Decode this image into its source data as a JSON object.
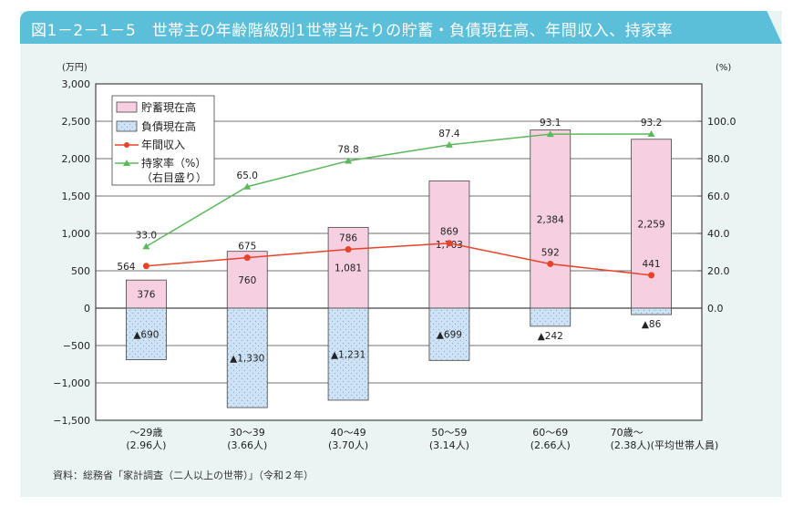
{
  "title": "図1－2－1－5　世帯主の年齢階級別1世帯当たりの貯蓄・負債現在高、年間収入、持家率",
  "source": "資料：総務省「家計調査（二人以上の世帯）」（令和２年）",
  "chart_data": {
    "type": "bar+line",
    "categories": [
      [
        "～29歳",
        "(2.96人)"
      ],
      [
        "30～39",
        "(3.66人)"
      ],
      [
        "40～49",
        "(3.70人)"
      ],
      [
        "50～59",
        "(3.14人)"
      ],
      [
        "60～69",
        "(2.66人)"
      ],
      [
        "70歳～",
        "(2.38人)(平均世帯人員)"
      ]
    ],
    "left_axis": {
      "unit": "(万円)",
      "ylim": [
        -1500,
        3000
      ],
      "ticks": [
        "3,000",
        "2,500",
        "2,000",
        "1,500",
        "1,000",
        "500",
        "0",
        "−500",
        "−1,000",
        "−1,500"
      ],
      "tick_values": [
        3000,
        2500,
        2000,
        1500,
        1000,
        500,
        0,
        -500,
        -1000,
        -1500
      ]
    },
    "right_axis": {
      "unit": "(%)",
      "ylim": [
        0,
        100
      ],
      "ticks": [
        "100.0",
        "80.0",
        "60.0",
        "40.0",
        "20.0",
        "0.0"
      ],
      "tick_values": [
        100,
        80,
        60,
        40,
        20,
        0
      ]
    },
    "grid": true,
    "legend_position": "top-left",
    "series": [
      {
        "name": "貯蓄現在高",
        "kind": "bar",
        "color": "#f6cfe0",
        "values": [
          376,
          760,
          1081,
          1703,
          2384,
          2259
        ],
        "labels": [
          "376",
          "760",
          "1,081",
          "1,703",
          "2,384",
          "2,259"
        ]
      },
      {
        "name": "負債現在高",
        "kind": "bar",
        "color": "#cfe3f5",
        "values": [
          -690,
          -1330,
          -1231,
          -699,
          -242,
          -86
        ],
        "labels": [
          "▲690",
          "▲1,330",
          "▲1,231",
          "▲699",
          "▲242",
          "▲86"
        ]
      },
      {
        "name": "年間収入",
        "kind": "line",
        "color": "#e8432a",
        "values": [
          564,
          675,
          786,
          869,
          592,
          441
        ],
        "labels": [
          "564",
          "675",
          "786",
          "869",
          "592",
          "441"
        ]
      },
      {
        "name": "持家率（%）",
        "name2": "（右目盛り）",
        "kind": "line",
        "axis": "right",
        "color": "#5cb85c",
        "values": [
          33.0,
          65.0,
          78.8,
          87.4,
          93.1,
          93.2
        ],
        "labels": [
          "33.0",
          "65.0",
          "78.8",
          "87.4",
          "93.1",
          "93.2"
        ]
      }
    ]
  }
}
